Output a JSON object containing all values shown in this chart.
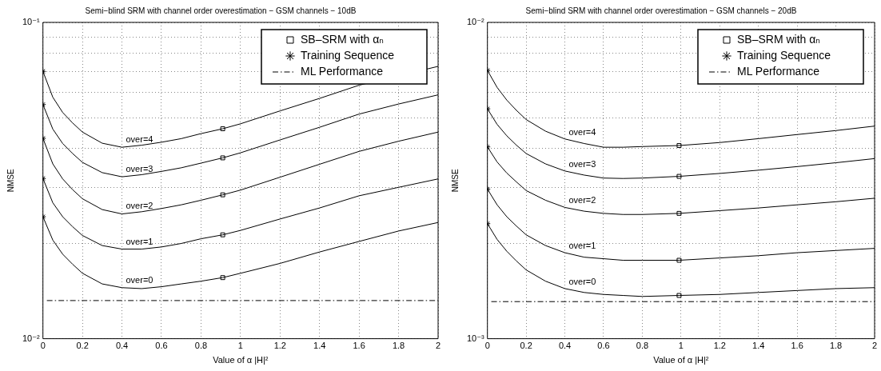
{
  "chart_data": [
    {
      "type": "line",
      "title": "Semi−blind SRM with channel order overestimation − GSM channels − 10dB",
      "xlabel": "Value of α |H|²",
      "ylabel": "NMSE",
      "log": "y",
      "grid": true,
      "legend": "top right",
      "x": [
        0,
        0.05,
        0.1,
        0.15,
        0.2,
        0.3,
        0.4,
        0.5,
        0.6,
        0.7,
        0.8,
        0.91,
        1.0,
        1.2,
        1.4,
        1.6,
        1.8,
        2.0
      ],
      "xlim": [
        0,
        2
      ],
      "xticks": [
        0,
        0.2,
        0.4,
        0.6,
        0.8,
        1,
        1.2,
        1.4,
        1.6,
        1.8,
        2
      ],
      "ylim": [
        0.01,
        0.1
      ],
      "yticks": [
        {
          "value": 0.01,
          "label": "10⁻²"
        },
        {
          "value": 0.02,
          "label": null
        },
        {
          "value": 0.03,
          "label": null
        },
        {
          "value": 0.04,
          "label": null
        },
        {
          "value": 0.05,
          "label": null
        },
        {
          "value": 0.06,
          "label": null
        },
        {
          "value": 0.07,
          "label": null
        },
        {
          "value": 0.08,
          "label": null
        },
        {
          "value": 0.09,
          "label": null
        },
        {
          "value": 0.1,
          "label": "10⁻¹"
        }
      ],
      "series": [
        {
          "name": "SB–SRM with αₙ",
          "type": "scatter",
          "marker": "square",
          "color": "#000000",
          "x": [
            0.91,
            0.91,
            0.91,
            0.91,
            0.91
          ],
          "values": [
            0.0461,
            0.0373,
            0.0285,
            0.0213,
            0.0156
          ]
        },
        {
          "name": "Training Sequence",
          "type": "scatter",
          "marker": "cross",
          "color": "#000000",
          "x": [
            0,
            0,
            0,
            0,
            0
          ],
          "values": [
            0.07,
            0.055,
            0.043,
            0.0321,
            0.0243
          ]
        },
        {
          "name": "ML Performance",
          "type": "line",
          "line_style": "dashdot",
          "color": "#000000",
          "x": [
            0.02,
            2
          ],
          "values": [
            0.0132,
            0.0132
          ]
        },
        {
          "name": "over=4",
          "color": "#000000",
          "values": [
            0.07,
            0.058,
            0.0519,
            0.0481,
            0.045,
            0.0415,
            0.0403,
            0.0409,
            0.0418,
            0.0429,
            0.0445,
            0.0461,
            0.0478,
            0.0525,
            0.0575,
            0.0633,
            null,
            0.0726
          ]
        },
        {
          "name": "over=3",
          "color": "#000000",
          "values": [
            0.055,
            0.046,
            0.0414,
            0.0385,
            0.0361,
            0.0335,
            0.0325,
            0.033,
            0.0338,
            0.0347,
            0.0359,
            0.0373,
            0.0387,
            0.0425,
            0.0466,
            0.0513,
            0.0552,
            0.059
          ]
        },
        {
          "name": "over=2",
          "color": "#000000",
          "values": [
            0.043,
            0.0357,
            0.032,
            0.0296,
            0.0277,
            0.0256,
            0.0248,
            0.0252,
            0.0258,
            0.0265,
            0.0274,
            0.0285,
            0.0295,
            0.0324,
            0.0356,
            0.0391,
            0.0421,
            0.045
          ]
        },
        {
          "name": "over=1",
          "color": "#000000",
          "values": [
            0.0321,
            0.0269,
            0.0243,
            0.0226,
            0.0212,
            0.0197,
            0.0192,
            0.0192,
            0.0195,
            0.02,
            0.0207,
            0.0213,
            0.022,
            0.0239,
            0.0259,
            0.0283,
            0.0301,
            0.032
          ]
        },
        {
          "name": "over=0",
          "color": "#000000",
          "values": [
            0.0243,
            0.0205,
            0.0185,
            0.0172,
            0.0161,
            0.0149,
            0.0145,
            0.0144,
            0.0146,
            0.0149,
            0.0152,
            0.0156,
            0.0161,
            0.0173,
            0.0188,
            0.0203,
            0.0219,
            0.0233
          ]
        }
      ]
    },
    {
      "type": "line",
      "title": "Semi−blind SRM with channel order overestimation − GSM channels − 20dB",
      "xlabel": "Value of α |H|²",
      "ylabel": "NMSE",
      "log": "y",
      "grid": true,
      "legend": "top right",
      "x": [
        0,
        0.05,
        0.1,
        0.15,
        0.2,
        0.3,
        0.4,
        0.5,
        0.6,
        0.7,
        0.8,
        0.99,
        1.2,
        1.4,
        1.6,
        1.8,
        2.0
      ],
      "xlim": [
        0,
        2
      ],
      "xticks": [
        0,
        0.2,
        0.4,
        0.6,
        0.8,
        1,
        1.2,
        1.4,
        1.6,
        1.8,
        2
      ],
      "ylim": [
        0.001,
        0.01
      ],
      "yticks": [
        {
          "value": 0.001,
          "label": "10⁻³"
        },
        {
          "value": 0.002,
          "label": null
        },
        {
          "value": 0.003,
          "label": null
        },
        {
          "value": 0.004,
          "label": null
        },
        {
          "value": 0.005,
          "label": null
        },
        {
          "value": 0.006,
          "label": null
        },
        {
          "value": 0.007,
          "label": null
        },
        {
          "value": 0.008,
          "label": null
        },
        {
          "value": 0.009,
          "label": null
        },
        {
          "value": 0.01,
          "label": "10⁻²"
        }
      ],
      "series": [
        {
          "name": "SB–SRM with αₙ",
          "type": "scatter",
          "marker": "square",
          "color": "#000000",
          "x": [
            0.99,
            0.99,
            0.99,
            0.99,
            0.99
          ],
          "values": [
            0.00408,
            0.00326,
            0.00249,
            0.00177,
            0.00137
          ]
        },
        {
          "name": "Training Sequence",
          "type": "scatter",
          "marker": "cross",
          "color": "#000000",
          "x": [
            0,
            0,
            0,
            0,
            0
          ],
          "values": [
            0.00705,
            0.00533,
            0.00404,
            0.00297,
            0.00231
          ]
        },
        {
          "name": "ML Performance",
          "type": "line",
          "line_style": "dashdot",
          "color": "#000000",
          "x": [
            0.02,
            2
          ],
          "values": [
            0.00131,
            0.00131
          ]
        },
        {
          "name": "over=4",
          "color": "#000000",
          "values": [
            0.00705,
            0.00623,
            0.00568,
            0.00527,
            0.00493,
            0.00453,
            0.00428,
            0.00414,
            0.00403,
            0.00403,
            0.00405,
            0.00408,
            0.00417,
            0.00429,
            0.00442,
            0.00455,
            0.0047
          ]
        },
        {
          "name": "over=3",
          "color": "#000000",
          "values": [
            0.00533,
            0.00476,
            0.00438,
            0.00409,
            0.00385,
            0.00357,
            0.00339,
            0.00329,
            0.00322,
            0.00321,
            0.00322,
            0.00326,
            0.00333,
            0.00341,
            0.0035,
            0.0036,
            0.00371
          ]
        },
        {
          "name": "over=2",
          "color": "#000000",
          "values": [
            0.00404,
            0.00362,
            0.00334,
            0.00313,
            0.00294,
            0.00274,
            0.0026,
            0.00253,
            0.00249,
            0.00247,
            0.00247,
            0.00249,
            0.00254,
            0.00259,
            0.00265,
            0.00271,
            0.00278
          ]
        },
        {
          "name": "over=1",
          "color": "#000000",
          "values": [
            0.00297,
            0.00265,
            0.00243,
            0.00227,
            0.00213,
            0.00197,
            0.00187,
            0.00181,
            0.00179,
            0.00177,
            0.00177,
            0.00177,
            0.0018,
            0.00183,
            0.00187,
            0.0019,
            0.00193
          ]
        },
        {
          "name": "over=0",
          "color": "#000000",
          "values": [
            0.00231,
            0.00206,
            0.00189,
            0.00176,
            0.00165,
            0.00152,
            0.00144,
            0.0014,
            0.00138,
            0.00137,
            0.00136,
            0.00137,
            0.00138,
            0.0014,
            0.00142,
            0.00144,
            0.00145
          ]
        }
      ]
    }
  ]
}
